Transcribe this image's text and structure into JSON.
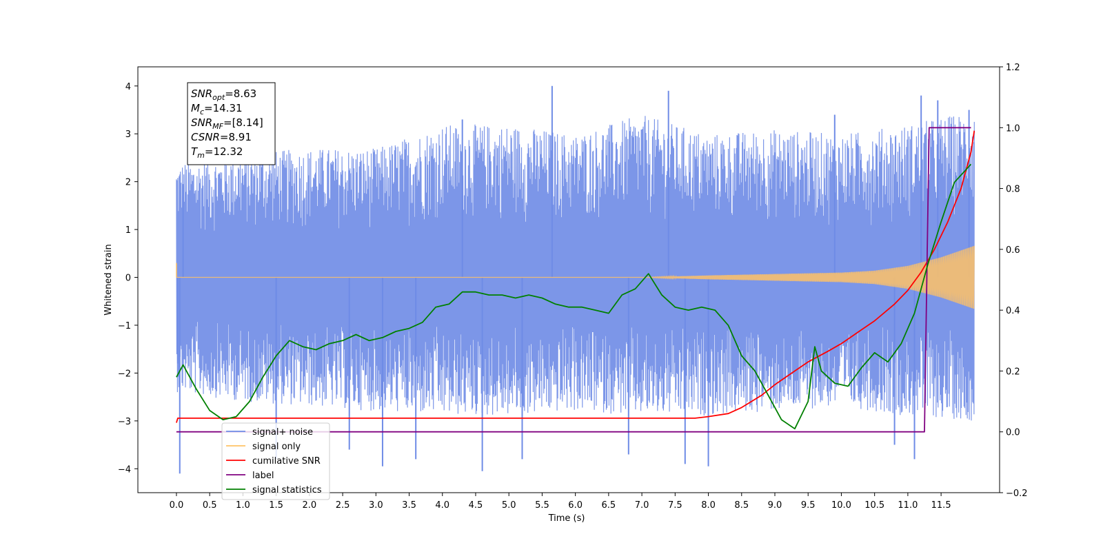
{
  "chart_data": {
    "type": "line",
    "xlabel": "Time (s)",
    "ylabel": "Whitened strain",
    "xlim": [
      -0.58,
      12.38
    ],
    "ylim": [
      -4.5,
      4.4
    ],
    "y2lim": [
      -0.2,
      1.2
    ],
    "grid": false,
    "x_ticks": [
      "0.0",
      "0.5",
      "1.0",
      "1.5",
      "2.0",
      "2.5",
      "3.0",
      "3.5",
      "4.0",
      "4.5",
      "5.0",
      "5.5",
      "6.0",
      "6.5",
      "7.0",
      "7.5",
      "8.0",
      "8.5",
      "9.0",
      "9.5",
      "10.0",
      "10.5",
      "11.0",
      "11.5"
    ],
    "y_ticks": [
      "4",
      "3",
      "2",
      "1",
      "0",
      "−1",
      "−2",
      "−3",
      "−4"
    ],
    "y2_ticks": [
      "1.2",
      "1.0",
      "0.8",
      "0.6",
      "0.4",
      "0.2",
      "0.0",
      "−0.2"
    ],
    "info_box": [
      {
        "base": "SNR",
        "sub": "opt",
        "value": "=8.63"
      },
      {
        "base": "M",
        "sub": "c",
        "value": "=14.31"
      },
      {
        "base": "SNR",
        "sub": "MF",
        "value": "=[8.14]"
      },
      {
        "base": "CSNR",
        "sub": "",
        "value": "=8.91"
      },
      {
        "base": "T",
        "sub": "m",
        "value": "=12.32"
      }
    ],
    "legend": {
      "placement": "lower-left",
      "entries": [
        {
          "label": "signal+ noise",
          "color": "#6e8be6"
        },
        {
          "label": "signal only",
          "color": "#ffc266"
        },
        {
          "label": "cumilative SNR",
          "color": "#ff0000"
        },
        {
          "label": "label",
          "color": "#800080"
        },
        {
          "label": "signal statistics",
          "color": "#008000"
        }
      ]
    },
    "series": [
      {
        "name": "signal+ noise",
        "axis": "left",
        "color": "#6e8be6",
        "t_range": [
          0.0,
          12.0
        ],
        "envelope_t": [
          0.0,
          1.0,
          2.0,
          3.0,
          4.0,
          5.0,
          6.0,
          7.0,
          8.0,
          9.0,
          10.0,
          11.0,
          12.0
        ],
        "envelope_upper": [
          2.4,
          2.6,
          2.7,
          2.7,
          3.2,
          3.2,
          3.0,
          3.4,
          3.0,
          3.1,
          3.0,
          3.2,
          3.5
        ],
        "envelope_lower": [
          -2.4,
          -2.6,
          -2.7,
          -2.8,
          -2.9,
          -2.9,
          -2.8,
          -2.9,
          -2.9,
          -2.8,
          -2.7,
          -2.9,
          -3.0
        ],
        "spikes": [
          {
            "t": 0.05,
            "y": -4.1
          },
          {
            "t": 1.5,
            "y": -3.8
          },
          {
            "t": 2.6,
            "y": -3.6
          },
          {
            "t": 3.1,
            "y": -3.95
          },
          {
            "t": 3.6,
            "y": -3.8
          },
          {
            "t": 4.6,
            "y": -4.05
          },
          {
            "t": 5.2,
            "y": -3.8
          },
          {
            "t": 6.8,
            "y": -3.7
          },
          {
            "t": 7.65,
            "y": -3.9
          },
          {
            "t": 8.0,
            "y": -3.95
          },
          {
            "t": 10.8,
            "y": -3.5
          },
          {
            "t": 11.1,
            "y": -3.8
          },
          {
            "t": 5.65,
            "y": 4.0
          },
          {
            "t": 7.4,
            "y": 3.9
          },
          {
            "t": 4.3,
            "y": 3.3
          },
          {
            "t": 11.45,
            "y": 3.7
          },
          {
            "t": 11.2,
            "y": 3.8
          },
          {
            "t": 11.92,
            "y": 3.5
          },
          {
            "t": 9.9,
            "y": 3.4
          },
          {
            "t": 0.1,
            "y": 1.95
          },
          {
            "t": 0.02,
            "y": -1.8
          }
        ]
      },
      {
        "name": "signal only",
        "axis": "left",
        "color": "#ffc266",
        "t": [
          0.0,
          7.0,
          8.0,
          9.0,
          10.0,
          10.5,
          11.0,
          11.5,
          12.0
        ],
        "amplitude": [
          0.0,
          0.0,
          0.04,
          0.07,
          0.1,
          0.14,
          0.24,
          0.42,
          0.66
        ]
      },
      {
        "name": "cumilative SNR",
        "axis": "right",
        "color": "#ff0000",
        "t": [
          0.0,
          0.02,
          7.5,
          7.8,
          8.0,
          8.3,
          8.5,
          8.8,
          9.0,
          9.3,
          9.5,
          9.8,
          10.0,
          10.3,
          10.5,
          10.8,
          11.0,
          11.2,
          11.4,
          11.6,
          11.8,
          11.95,
          12.0
        ],
        "values": [
          0.03,
          0.045,
          0.045,
          0.045,
          0.05,
          0.06,
          0.08,
          0.12,
          0.155,
          0.2,
          0.23,
          0.265,
          0.29,
          0.335,
          0.365,
          0.42,
          0.465,
          0.525,
          0.6,
          0.69,
          0.8,
          0.92,
          0.99
        ]
      },
      {
        "name": "label",
        "axis": "right",
        "color": "#800080",
        "t": [
          0.0,
          11.25,
          11.32,
          11.95
        ],
        "values": [
          0.0,
          0.0,
          1.0,
          1.0
        ]
      },
      {
        "name": "signal statistics",
        "axis": "right",
        "color": "#008000",
        "t": [
          0.0,
          0.1,
          0.3,
          0.5,
          0.7,
          0.9,
          1.1,
          1.3,
          1.5,
          1.7,
          1.9,
          2.1,
          2.3,
          2.5,
          2.7,
          2.9,
          3.1,
          3.3,
          3.5,
          3.7,
          3.9,
          4.1,
          4.3,
          4.5,
          4.7,
          4.9,
          5.1,
          5.3,
          5.5,
          5.7,
          5.9,
          6.1,
          6.3,
          6.5,
          6.7,
          6.9,
          7.1,
          7.3,
          7.5,
          7.7,
          7.9,
          8.1,
          8.3,
          8.5,
          8.7,
          8.9,
          9.1,
          9.3,
          9.5,
          9.6,
          9.7,
          9.9,
          10.1,
          10.3,
          10.5,
          10.7,
          10.9,
          11.1,
          11.3,
          11.5,
          11.7,
          11.95
        ],
        "values": [
          0.18,
          0.22,
          0.14,
          0.07,
          0.04,
          0.05,
          0.1,
          0.18,
          0.25,
          0.3,
          0.28,
          0.27,
          0.29,
          0.3,
          0.32,
          0.3,
          0.31,
          0.33,
          0.34,
          0.36,
          0.41,
          0.42,
          0.46,
          0.46,
          0.45,
          0.45,
          0.44,
          0.45,
          0.44,
          0.42,
          0.41,
          0.41,
          0.4,
          0.39,
          0.45,
          0.47,
          0.52,
          0.45,
          0.41,
          0.4,
          0.41,
          0.4,
          0.35,
          0.25,
          0.2,
          0.12,
          0.04,
          0.01,
          0.1,
          0.28,
          0.2,
          0.16,
          0.15,
          0.21,
          0.26,
          0.23,
          0.29,
          0.39,
          0.55,
          0.69,
          0.82,
          0.88
        ]
      }
    ]
  }
}
